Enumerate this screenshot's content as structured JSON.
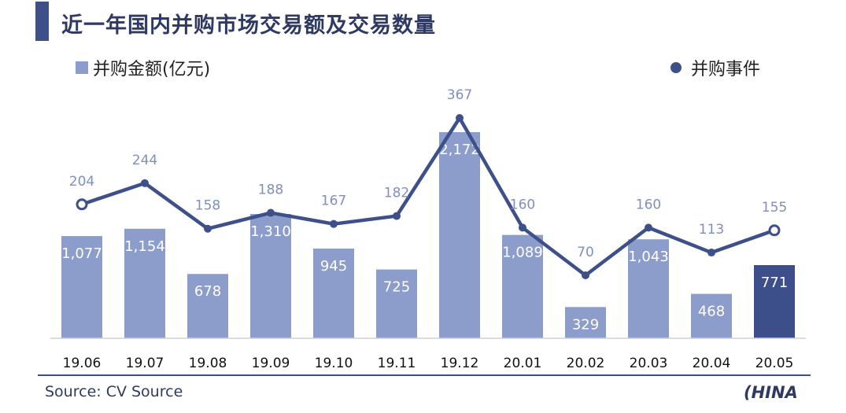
{
  "title": "近一年国内并购市场交易额及交易数量",
  "source": "Source: CV Source",
  "logo_text": "CHINA 汉能",
  "colors": {
    "bar": "#8d9dcb",
    "bar_highlight": "#3d4f8a",
    "line": "#3d5089",
    "line_label": "#7f8fc0"
  },
  "chart_data": {
    "type": "bar+line",
    "categories": [
      "19.06",
      "19.07",
      "19.08",
      "19.09",
      "19.10",
      "19.11",
      "19.12",
      "20.01",
      "20.02",
      "20.03",
      "20.04",
      "20.05"
    ],
    "series": [
      {
        "name": "并购金额(亿元)",
        "type": "bar",
        "values": [
          1077,
          1154,
          678,
          1310,
          945,
          725,
          2172,
          1089,
          329,
          1043,
          468,
          771
        ],
        "labels": [
          "1,077",
          "1,154",
          "678",
          "1,310",
          "945",
          "725",
          "2,172",
          "1,089",
          "329",
          "1,043",
          "468",
          "771"
        ]
      },
      {
        "name": "并购事件",
        "type": "line",
        "values": [
          204,
          244,
          158,
          188,
          167,
          182,
          367,
          160,
          70,
          160,
          113,
          155
        ]
      }
    ],
    "legend": "top",
    "grid": false
  }
}
